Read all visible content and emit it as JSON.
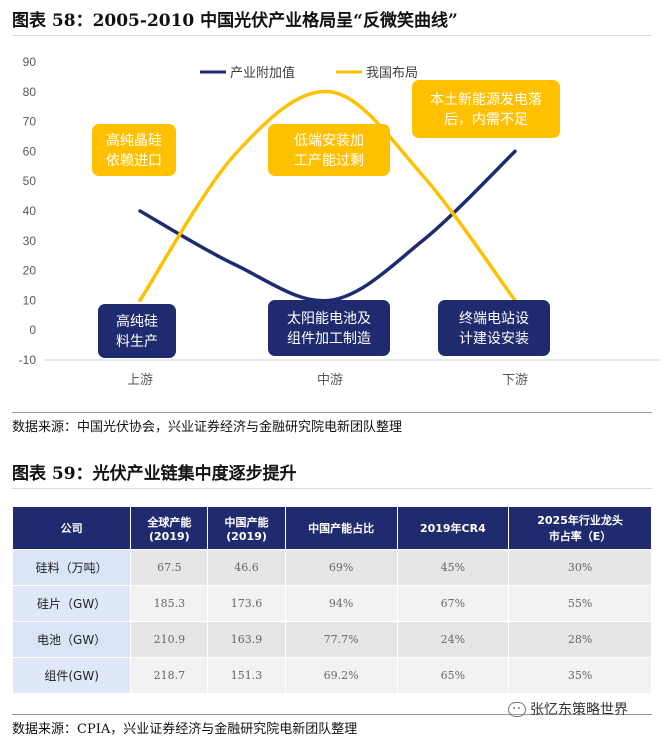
{
  "figure1": {
    "title": "图表 58：2005-2010 中国光伏产业格局呈“反微笑曲线”",
    "source": "数据来源：中国光伏协会，兴业证券经济与金融研究院电新团队整理"
  },
  "chart_data": {
    "type": "line",
    "categories": [
      "上游",
      "中游",
      "下游"
    ],
    "ylim": [
      -10,
      90
    ],
    "yticks": [
      "90",
      "80",
      "70",
      "60",
      "50",
      "40",
      "30",
      "20",
      "10",
      "0",
      "-10"
    ],
    "grid": false,
    "legend_position": "top-center",
    "series": [
      {
        "name": "产业附加值",
        "color": "#1f2b6e",
        "x": [
          0,
          0.5,
          1,
          1.5,
          2
        ],
        "values": [
          40,
          22,
          10,
          30,
          60
        ]
      },
      {
        "name": "我国布局",
        "color": "#ffc000",
        "x": [
          0,
          0.5,
          1,
          1.5,
          2
        ],
        "values": [
          10,
          59,
          80,
          52,
          10
        ]
      }
    ],
    "annotations": [
      {
        "text": "高纯晶硅\n依赖进口",
        "style": "yellow"
      },
      {
        "text": "低端安装加\n工产能过剩",
        "style": "yellow"
      },
      {
        "text": "本土新能源发电落\n后，内需不足",
        "style": "yellow"
      },
      {
        "text": "高纯硅\n料生产",
        "style": "navy"
      },
      {
        "text": "太阳能电池及\n组件加工制造",
        "style": "navy"
      },
      {
        "text": "终端电站设\n计建设安装",
        "style": "navy"
      }
    ]
  },
  "figure2": {
    "title": "图表 59：光伏产业链集中度逐步提升",
    "source": "数据来源：CPIA，兴业证券经济与金融研究院电新团队整理",
    "headers": [
      "公司",
      "全球产能\n(2019)",
      "中国产能\n(2019)",
      "中国产能占比",
      "2019年CR4",
      "2025年行业龙头\n市占率（E）"
    ],
    "rows": [
      [
        "硅料（万吨）",
        "67.5",
        "46.6",
        "69%",
        "45%",
        "30%"
      ],
      [
        "硅片（GW）",
        "185.3",
        "173.6",
        "94%",
        "67%",
        "55%"
      ],
      [
        "电池（GW）",
        "210.9",
        "163.9",
        "77.7%",
        "24%",
        "28%"
      ],
      [
        "组件(GW)",
        "218.7",
        "151.3",
        "69.2%",
        "65%",
        "35%"
      ]
    ]
  },
  "watermark": "张忆东策略世界"
}
